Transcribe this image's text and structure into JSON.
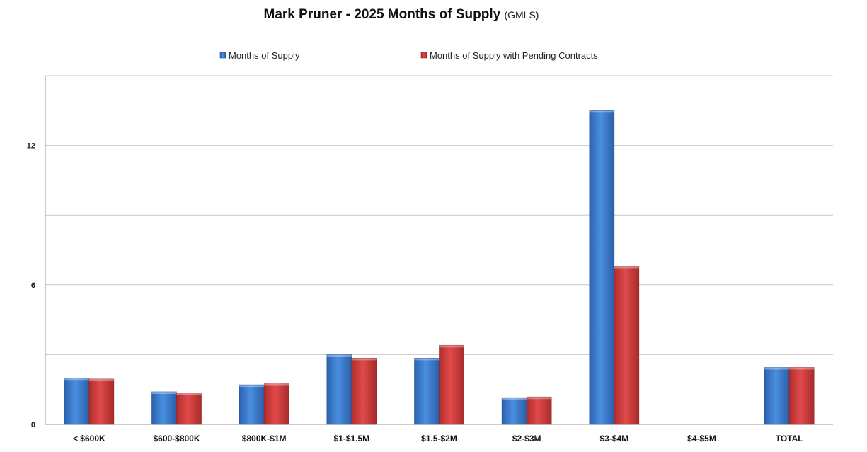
{
  "chart_data": {
    "type": "bar",
    "title": "Mark Pruner - 2025 Months of Supply",
    "subtitle": "(GMLS)",
    "xlabel": "",
    "ylabel": "",
    "categories": [
      "< $600K",
      "$600-$800K",
      "$800K-$1M",
      "$1-$1.5M",
      "$1.5-$2M",
      "$2-$3M",
      "$3-$4M",
      "$4-$5M",
      "TOTAL"
    ],
    "series": [
      {
        "name": "Months of Supply",
        "color": "#3f7fd4",
        "values": [
          2.0,
          1.4,
          1.7,
          3.0,
          2.85,
          1.15,
          13.5,
          0,
          2.45
        ]
      },
      {
        "name": "Months of Supply with Pending Contracts",
        "color": "#d43f3f",
        "values": [
          1.95,
          1.35,
          1.78,
          2.85,
          3.4,
          1.18,
          6.8,
          0,
          2.45
        ]
      }
    ],
    "ylim": [
      0,
      15
    ],
    "yticks": [
      0,
      6,
      12
    ],
    "gridlines": [
      0,
      3,
      6,
      9,
      12,
      15
    ],
    "grid": true,
    "legend": "top-center"
  }
}
